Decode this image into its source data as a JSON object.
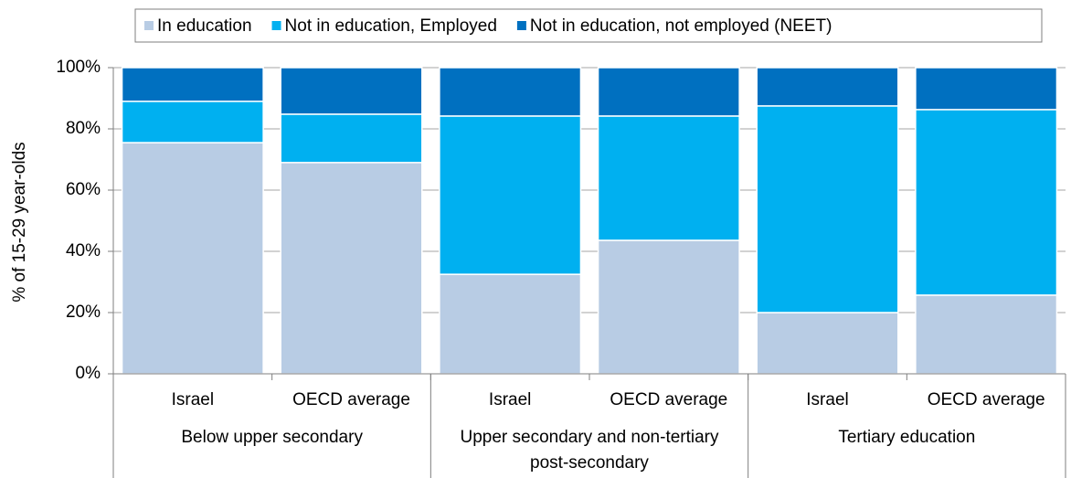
{
  "chart_data": {
    "type": "stacked_bar",
    "categories": [
      "Israel",
      "OECD average",
      "Israel",
      "OECD average",
      "Israel",
      "OECD average"
    ],
    "groups": [
      "Below upper secondary",
      "Upper secondary and non-tertiary post-secondary",
      "Tertiary education"
    ],
    "ylabel": "% of 15-29 year-olds",
    "ylim": [
      0,
      100
    ],
    "yticks": [
      {
        "value": 0,
        "label": "0%"
      },
      {
        "value": 20,
        "label": "20%"
      },
      {
        "value": 40,
        "label": "40%"
      },
      {
        "value": 60,
        "label": "60%"
      },
      {
        "value": 80,
        "label": "80%"
      },
      {
        "value": 100,
        "label": "100%"
      }
    ],
    "grid": true,
    "legend": "top",
    "series": [
      {
        "name": "In education",
        "color": "#b8cce4",
        "values": [
          75.5,
          69.0,
          32.5,
          43.6,
          20.0,
          25.7
        ]
      },
      {
        "name": "Not in education, Employed",
        "color": "#00b0f0",
        "values": [
          13.5,
          15.8,
          51.7,
          40.6,
          67.5,
          60.6
        ]
      },
      {
        "name": "Not in education, not employed (NEET)",
        "color": "#0070c0",
        "values": [
          11.0,
          15.2,
          15.8,
          15.8,
          12.5,
          13.7
        ]
      }
    ]
  }
}
